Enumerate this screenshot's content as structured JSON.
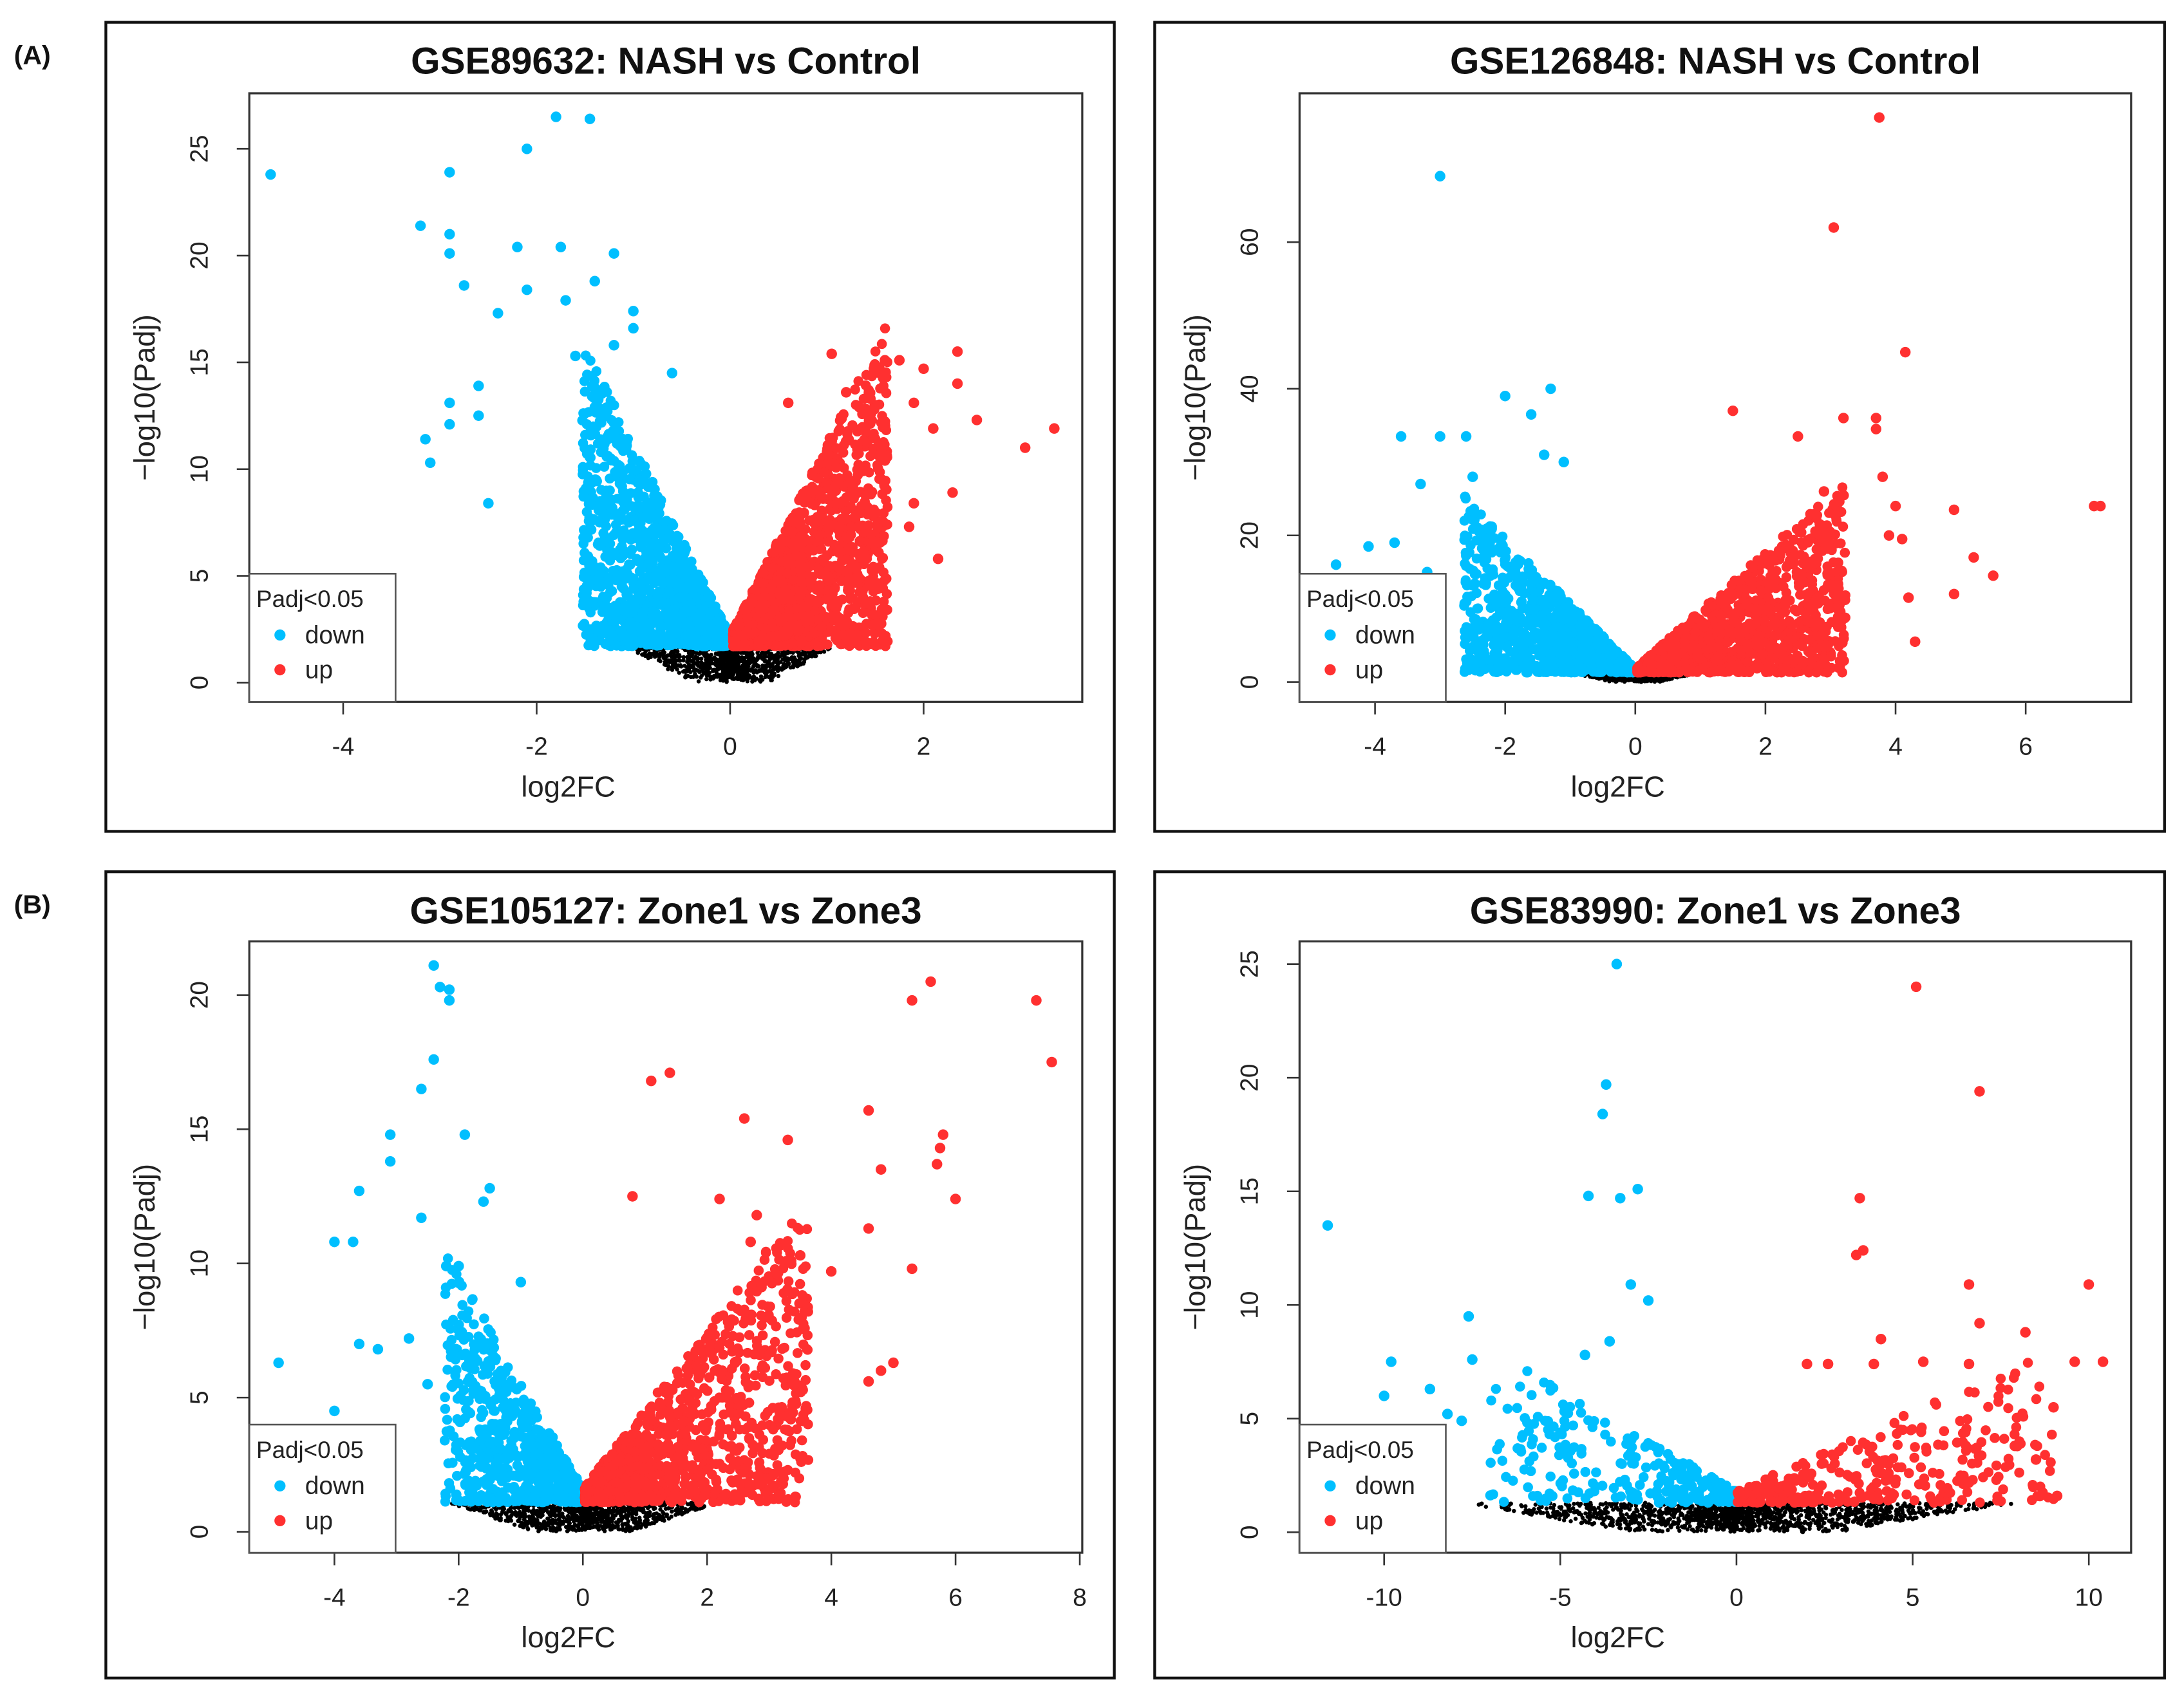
{
  "figure_labels": {
    "a": "(A)",
    "b": "(B)"
  },
  "colors": {
    "down": "#00bfff",
    "up": "#ff3030",
    "ns": "#000000"
  },
  "chart_data": [
    {
      "type": "scatter",
      "title": "GSE89632: NASH vs Control",
      "xlabel": "log2FC",
      "ylabel": "−log10(Padj)",
      "xlim": [
        -4.97,
        3.64
      ],
      "ylim": [
        -0.9,
        27.6
      ],
      "xticks": [
        -4,
        -2,
        0,
        2
      ],
      "yticks": [
        0,
        5,
        10,
        15,
        20,
        25
      ],
      "legend": {
        "title": "Padj<0.05",
        "items": [
          "down",
          "up"
        ],
        "position": "bottom-left"
      },
      "outliers": {
        "down": [
          [
            -4.75,
            23.8
          ],
          [
            -1.8,
            26.5
          ],
          [
            -1.45,
            26.4
          ],
          [
            -2.1,
            25
          ],
          [
            -2.9,
            23.9
          ],
          [
            -3.2,
            21.4
          ],
          [
            -2.9,
            21
          ],
          [
            -2.9,
            20.1
          ],
          [
            -2.2,
            20.4
          ],
          [
            -1.75,
            20.4
          ],
          [
            -1.2,
            20.1
          ],
          [
            -2.75,
            18.6
          ],
          [
            -1.4,
            18.8
          ],
          [
            -2.1,
            18.4
          ],
          [
            -3.15,
            11.4
          ],
          [
            -3.1,
            10.3
          ],
          [
            -2.9,
            13.1
          ],
          [
            -2.9,
            12.1
          ],
          [
            -2.6,
            13.9
          ],
          [
            -2.5,
            8.4
          ],
          [
            -2.6,
            12.5
          ],
          [
            -1,
            17.4
          ],
          [
            -1,
            16.6
          ],
          [
            -0.6,
            14.5
          ],
          [
            -2.4,
            17.3
          ],
          [
            -1.7,
            17.9
          ],
          [
            -1.6,
            15.3
          ],
          [
            -1.2,
            15.8
          ]
        ],
        "up": [
          [
            1.05,
            15.4
          ],
          [
            1.6,
            15.1
          ],
          [
            1.75,
            15.1
          ],
          [
            2.35,
            15.5
          ],
          [
            2.35,
            14
          ],
          [
            2,
            14.7
          ],
          [
            2.55,
            12.3
          ],
          [
            3.35,
            11.9
          ],
          [
            3.05,
            11
          ],
          [
            2.3,
            8.9
          ],
          [
            2.15,
            5.8
          ],
          [
            2.1,
            11.9
          ],
          [
            1.2,
            13.6
          ],
          [
            1.45,
            13.3
          ],
          [
            1.9,
            13.1
          ],
          [
            0.6,
            13.1
          ],
          [
            1.6,
            10.4
          ],
          [
            1.9,
            8.4
          ],
          [
            1.85,
            7.3
          ]
        ]
      },
      "cloud_model": {
        "threshold": 1.7,
        "down": {
          "n": 1400,
          "xmax": 1.5,
          "slope": 9
        },
        "up": {
          "n": 1600,
          "xmax": 1.6,
          "slope": 9
        },
        "ns": {
          "n": 900,
          "xmax": 1.1
        }
      }
    },
    {
      "type": "scatter",
      "title": "GSE126848: NASH vs Control",
      "xlabel": "log2FC",
      "ylabel": "−log10(Padj)",
      "xlim": [
        -5.16,
        7.62
      ],
      "ylim": [
        -2.7,
        80.3
      ],
      "xticks": [
        -4,
        -2,
        0,
        2,
        4,
        6
      ],
      "yticks": [
        0,
        20,
        40,
        60
      ],
      "legend": {
        "title": "Padj<0.05",
        "items": [
          "down",
          "up"
        ],
        "position": "bottom-left"
      },
      "outliers": {
        "down": [
          [
            -3,
            69
          ],
          [
            -2,
            39
          ],
          [
            -1.3,
            40
          ],
          [
            -3.6,
            33.5
          ],
          [
            -3,
            33.5
          ],
          [
            -2.6,
            33.5
          ],
          [
            -1.6,
            36.5
          ],
          [
            -4.1,
            18.5
          ],
          [
            -3.7,
            19
          ],
          [
            -4.6,
            16
          ],
          [
            -3.2,
            15
          ],
          [
            -1.4,
            31
          ],
          [
            -1.1,
            30
          ],
          [
            -2.5,
            28
          ],
          [
            -3.3,
            27
          ]
        ],
        "up": [
          [
            3.75,
            77
          ],
          [
            3.05,
            62
          ],
          [
            4.15,
            45
          ],
          [
            1.5,
            37
          ],
          [
            3.2,
            36
          ],
          [
            3.7,
            36
          ],
          [
            3.7,
            34.5
          ],
          [
            4,
            24
          ],
          [
            7.05,
            24
          ],
          [
            7.15,
            24
          ],
          [
            4.9,
            23.5
          ],
          [
            5.2,
            17
          ],
          [
            5.5,
            14.5
          ],
          [
            4.9,
            12
          ],
          [
            4.3,
            5.5
          ],
          [
            4.2,
            11.5
          ],
          [
            2.5,
            33.5
          ],
          [
            3.8,
            28
          ],
          [
            3.9,
            20
          ],
          [
            4.1,
            19.5
          ],
          [
            2.9,
            26
          ]
        ]
      },
      "cloud_model": {
        "threshold": 1.3,
        "down": {
          "n": 1000,
          "xmax": 2.6,
          "slope": 9
        },
        "up": {
          "n": 1300,
          "xmax": 3.2,
          "slope": 8
        },
        "ns": {
          "n": 500,
          "xmax": 1.0
        }
      }
    },
    {
      "type": "scatter",
      "title": "GSE105127: Zone1 vs Zone3",
      "xlabel": "log2FC",
      "ylabel": "−log10(Padj)",
      "xlim": [
        -5.37,
        8.04
      ],
      "ylim": [
        -0.78,
        22.0
      ],
      "xticks": [
        -4,
        -2,
        0,
        2,
        4,
        6,
        8
      ],
      "yticks": [
        0,
        5,
        10,
        15,
        20
      ],
      "legend": {
        "title": "Padj<0.05",
        "items": [
          "down",
          "up"
        ],
        "position": "bottom-left"
      },
      "outliers": {
        "down": [
          [
            -2.4,
            21.1
          ],
          [
            -2.3,
            20.3
          ],
          [
            -2.15,
            20.2
          ],
          [
            -2.15,
            19.8
          ],
          [
            -2.4,
            17.6
          ],
          [
            -2.6,
            16.5
          ],
          [
            -1.9,
            14.8
          ],
          [
            -3.1,
            14.8
          ],
          [
            -3.1,
            13.8
          ],
          [
            -3.6,
            12.7
          ],
          [
            -1.5,
            12.8
          ],
          [
            -1.6,
            12.3
          ],
          [
            -2.6,
            11.7
          ],
          [
            -4,
            10.8
          ],
          [
            -3.7,
            10.8
          ],
          [
            -4.9,
            6.3
          ],
          [
            -4,
            4.5
          ],
          [
            -3.6,
            7
          ],
          [
            -2.2,
            9.9
          ],
          [
            -2,
            9.9
          ],
          [
            -1,
            9.3
          ],
          [
            -3.3,
            6.8
          ],
          [
            -2.8,
            7.2
          ],
          [
            -2.5,
            5.5
          ]
        ],
        "up": [
          [
            5.6,
            20.5
          ],
          [
            5.3,
            19.8
          ],
          [
            7.3,
            19.8
          ],
          [
            7.55,
            17.5
          ],
          [
            1.4,
            17.1
          ],
          [
            1.1,
            16.8
          ],
          [
            2.6,
            15.4
          ],
          [
            4.6,
            15.7
          ],
          [
            5.8,
            14.8
          ],
          [
            5.75,
            14.3
          ],
          [
            5.7,
            13.7
          ],
          [
            3.3,
            14.6
          ],
          [
            4.8,
            13.5
          ],
          [
            6,
            12.4
          ],
          [
            0.8,
            12.5
          ],
          [
            4.6,
            11.3
          ],
          [
            5.3,
            9.8
          ],
          [
            4,
            9.7
          ],
          [
            5,
            6.3
          ],
          [
            4.8,
            6
          ],
          [
            4.6,
            5.6
          ],
          [
            2.2,
            12.4
          ],
          [
            2.7,
            10.8
          ],
          [
            3.5,
            10.3
          ],
          [
            2.8,
            11.8
          ]
        ]
      },
      "cloud_model": {
        "threshold": 1.1,
        "down": {
          "n": 700,
          "xmax": 2.2,
          "slope": 4
        },
        "up": {
          "n": 1100,
          "xmax": 3.6,
          "slope": 3
        },
        "ns": {
          "n": 900,
          "xmax": 2.2
        }
      }
    },
    {
      "type": "scatter",
      "title": "GSE83990: Zone1 vs Zone3",
      "xlabel": "log2FC",
      "ylabel": "−log10(Padj)",
      "xlim": [
        -12.4,
        11.2
      ],
      "ylim": [
        -0.9,
        26.0
      ],
      "xticks": [
        -10,
        -5,
        0,
        5,
        10
      ],
      "yticks": [
        0,
        5,
        10,
        15,
        20,
        25
      ],
      "legend": {
        "title": "Padj<0.05",
        "items": [
          "down",
          "up"
        ],
        "position": "bottom-left"
      },
      "outliers": {
        "down": [
          [
            -3.4,
            25
          ],
          [
            -3.7,
            19.7
          ],
          [
            -3.8,
            18.4
          ],
          [
            -4.2,
            14.8
          ],
          [
            -2.8,
            15.1
          ],
          [
            -3.3,
            14.7
          ],
          [
            -11.6,
            13.5
          ],
          [
            -7.6,
            9.5
          ],
          [
            -3,
            10.9
          ],
          [
            -2.5,
            10.2
          ],
          [
            -9.8,
            7.5
          ],
          [
            -8.7,
            6.3
          ],
          [
            -10,
            6
          ],
          [
            -4.3,
            7.8
          ],
          [
            -3.6,
            8.4
          ],
          [
            -7.5,
            7.6
          ],
          [
            -8.2,
            5.2
          ],
          [
            -7.8,
            4.9
          ]
        ],
        "up": [
          [
            5.1,
            24
          ],
          [
            6.9,
            19.4
          ],
          [
            3.5,
            14.7
          ],
          [
            3.4,
            12.2
          ],
          [
            3.6,
            12.4
          ],
          [
            6.6,
            10.9
          ],
          [
            10,
            10.9
          ],
          [
            6.9,
            9.2
          ],
          [
            8.2,
            8.8
          ],
          [
            10.4,
            7.5
          ],
          [
            9.6,
            7.5
          ],
          [
            5.3,
            7.5
          ],
          [
            6.6,
            7.4
          ],
          [
            9,
            5.5
          ],
          [
            9.1,
            1.6
          ],
          [
            4.1,
            8.5
          ],
          [
            3.9,
            7.4
          ],
          [
            2,
            7.4
          ],
          [
            2.6,
            7.4
          ],
          [
            7.9,
            3.8
          ],
          [
            8.5,
            3.2
          ]
        ]
      },
      "cloud_model": {
        "threshold": 1.3,
        "down": {
          "n": 260,
          "xmax": 7,
          "slope": 0.9
        },
        "up": {
          "n": 300,
          "xmax": 9,
          "slope": 0.7
        },
        "ns": {
          "n": 1400,
          "xmax": 8
        }
      }
    }
  ]
}
